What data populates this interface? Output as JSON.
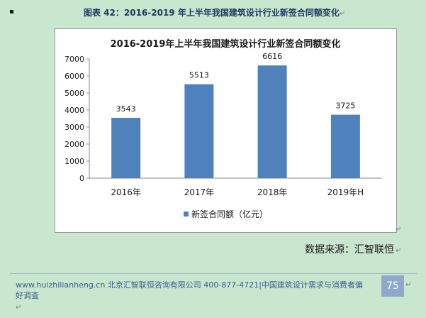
{
  "caption": "图表 42：2016-2019 年上半年我国建筑设计行业新签合同额变化",
  "paragraph_mark": "↵",
  "chart_data": {
    "type": "bar",
    "title": "2016-2019年上半年我国建筑设计行业新签合同额变化",
    "categories": [
      "2016年",
      "2017年",
      "2018年",
      "2019年H"
    ],
    "series": [
      {
        "name": "新签合同额（亿元）",
        "values": [
          3543,
          5513,
          6616,
          3725
        ],
        "color": "#4f81bd"
      }
    ],
    "ylim": [
      0,
      7000
    ],
    "yticks": [
      0,
      1000,
      2000,
      3000,
      4000,
      5000,
      6000,
      7000
    ],
    "grid": false,
    "legend": "bottom",
    "data_labels": true
  },
  "source": "数据来源：汇智联恒",
  "footer": {
    "text": "www.huizhilianheng.cn 北京汇智联恒咨询有限公司 400-877-4721|中国建筑设计需求与消费者偏好调查",
    "page_number": "75"
  }
}
